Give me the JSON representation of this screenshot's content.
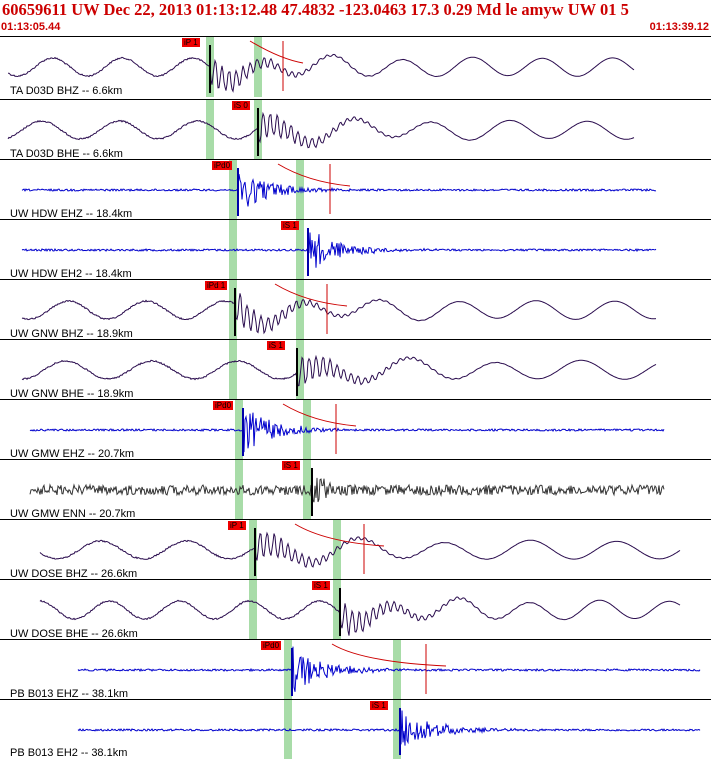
{
  "header": {
    "title": "60659611 UW Dec 22, 2013 01:13:12.48    47.4832 -123.0463 17.3 0.29 Md le amyw UW 01    5",
    "time_start": "01:13:05.44",
    "time_end": "01:13:39.12"
  },
  "colors": {
    "header_text": "#cc0000",
    "trace_bh": "#2a0c4e",
    "trace_eh": "#0000cc",
    "trace_en": "#333333",
    "pick_box": "#ee0000",
    "pick_window": "#a8dca8",
    "pick_line": "#000000"
  },
  "traces": [
    {
      "label": "TA D03D BHZ -- 6.6km",
      "type": "long",
      "pick_tag": "iP 1"
    },
    {
      "label": "TA D03D BHE -- 6.6km",
      "type": "long",
      "pick_tag": "iS 0"
    },
    {
      "label": "UW HDW EHZ -- 18.4km",
      "type": "short",
      "pick_tag": "iPd0"
    },
    {
      "label": "UW HDW EH2 -- 18.4km",
      "type": "short",
      "pick_tag": "iS 1"
    },
    {
      "label": "UW GNW BHZ -- 18.9km",
      "type": "long",
      "pick_tag": "iPd 1"
    },
    {
      "label": "UW GNW BHE -- 18.9km",
      "type": "long",
      "pick_tag": "iS 1"
    },
    {
      "label": "UW GMW EHZ -- 20.7km",
      "type": "short",
      "pick_tag": "iPd0"
    },
    {
      "label": "UW GMW ENN -- 20.7km",
      "type": "noise",
      "pick_tag": "iS 1"
    },
    {
      "label": "UW DOSE BHZ -- 26.6km",
      "type": "long",
      "pick_tag": "iP 1"
    },
    {
      "label": "UW DOSE BHE -- 26.6km",
      "type": "long",
      "pick_tag": "iS 1"
    },
    {
      "label": "PB B013 EHZ -- 38.1km",
      "type": "short",
      "pick_tag": "iPd0"
    },
    {
      "label": "PB B013 EH2 -- 38.1km",
      "type": "short",
      "pick_tag": "iS 1"
    }
  ]
}
